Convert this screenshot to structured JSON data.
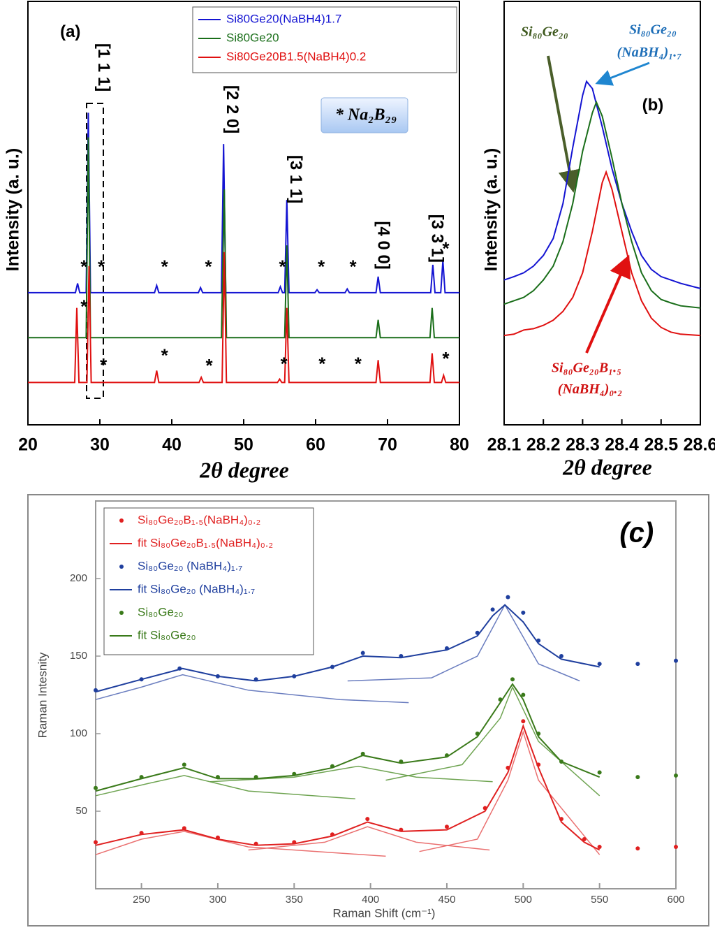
{
  "chart_data": [
    {
      "type": "line",
      "xlabel": "2θ degree",
      "ylabel": "Intensity (a. u.)",
      "xlim": [
        20,
        80
      ],
      "xticks": [
        20,
        30,
        40,
        50,
        60,
        70,
        80
      ],
      "ylim": [
        0,
        100
      ],
      "legend": "upper right",
      "series": [
        {
          "name": "Si80Ge20(NaBH4)1.7",
          "color": "#1414d2",
          "x": [
            20,
            26.6,
            26.9,
            27.2,
            28.1,
            28.4,
            28.7,
            37.6,
            37.9,
            38.2,
            43.7,
            44.0,
            44.3,
            46.9,
            47.2,
            47.5,
            54.8,
            55.1,
            55.4,
            55.7,
            56.0,
            56.3,
            59.9,
            60.2,
            60.5,
            64.1,
            64.4,
            64.7,
            68.4,
            68.7,
            69.0,
            76.0,
            76.3,
            76.6,
            77.4,
            77.7,
            78.0,
            80
          ],
          "values": [
            31.2,
            31.2,
            33.4,
            31.2,
            31.2,
            73.7,
            31.2,
            31.2,
            32.9,
            31.2,
            31.2,
            32.4,
            31.2,
            31.2,
            66.3,
            31.2,
            31.2,
            32.6,
            31.2,
            31.2,
            53.1,
            31.2,
            31.2,
            31.9,
            31.2,
            31.2,
            32.1,
            31.2,
            31.2,
            35,
            31.2,
            31.2,
            37.8,
            31.2,
            31.2,
            38.8,
            31.2,
            31.2
          ]
        },
        {
          "name": "Si80Ge20",
          "color": "#1a6e1a",
          "x": [
            20,
            28.1,
            28.4,
            28.7,
            46.9,
            47.3,
            47.6,
            55.7,
            56.0,
            56.3,
            68.4,
            68.7,
            69.0,
            75.9,
            76.2,
            76.5,
            80
          ],
          "values": [
            20.6,
            20.6,
            67.9,
            20.6,
            20.6,
            55.6,
            20.6,
            20.6,
            42.4,
            20.6,
            20.6,
            24.8,
            20.6,
            20.6,
            27.6,
            20.6,
            20.6
          ]
        },
        {
          "name": "Si80Ge20B1.5(NaBH4)0.2",
          "color": "#e01010",
          "x": [
            20,
            26.5,
            26.8,
            27.1,
            28.2,
            28.5,
            28.8,
            37.6,
            37.9,
            38.2,
            43.8,
            44.1,
            44.4,
            47.0,
            47.3,
            47.6,
            54.7,
            55.0,
            55.3,
            55.7,
            56.0,
            56.3,
            68.4,
            68.7,
            69.0,
            75.9,
            76.2,
            76.5,
            77.5,
            77.8,
            78.1,
            80
          ],
          "values": [
            10,
            10,
            27.6,
            10,
            10,
            37.5,
            10,
            10,
            12.8,
            10,
            10,
            11.2,
            10,
            10,
            40.8,
            10,
            10,
            10.8,
            10,
            10,
            27.6,
            10,
            10,
            15.3,
            10,
            10,
            16.9,
            10,
            10,
            11.7,
            10,
            10
          ]
        }
      ],
      "annotations": [
        {
          "text": "(a)",
          "x": 25.9,
          "y": 92.6
        },
        {
          "text": "[1 1 1]",
          "x": 30.4,
          "y": 84.4
        },
        {
          "text": "[2 2 0]",
          "x": 48.3,
          "y": 74.5
        },
        {
          "text": "[3 1 1]",
          "x": 57.1,
          "y": 58
        },
        {
          "text": "[4 0 0]",
          "x": 69.3,
          "y": 42.4
        },
        {
          "text": "[3 3 1]",
          "x": 76.8,
          "y": 44
        },
        {
          "text": "* Na₂B₂₉",
          "x": 67,
          "y": 72.9
        },
        {
          "text": "*",
          "x": 27.8,
          "y": 37
        },
        {
          "text": "*",
          "x": 30.2,
          "y": 37
        },
        {
          "text": "*",
          "x": 39,
          "y": 37
        },
        {
          "text": "*",
          "x": 45.1,
          "y": 37
        },
        {
          "text": "*",
          "x": 55.4,
          "y": 37
        },
        {
          "text": "*",
          "x": 60.8,
          "y": 37
        },
        {
          "text": "*",
          "x": 65.2,
          "y": 37
        },
        {
          "text": "*",
          "x": 78.1,
          "y": 41.3
        },
        {
          "text": "*",
          "x": 27.8,
          "y": 27.6
        },
        {
          "text": "*",
          "x": 30.5,
          "y": 13.8
        },
        {
          "text": "*",
          "x": 39,
          "y": 16.1
        },
        {
          "text": "*",
          "x": 45.2,
          "y": 13.7
        },
        {
          "text": "*",
          "x": 55.6,
          "y": 14.1
        },
        {
          "text": "*",
          "x": 60.9,
          "y": 14.1
        },
        {
          "text": "*",
          "x": 65.9,
          "y": 14.1
        },
        {
          "text": "*",
          "x": 78.1,
          "y": 15.3
        }
      ]
    },
    {
      "type": "line",
      "xlabel": "2θ degree",
      "ylabel": "Intensity (a. u.)",
      "xlim": [
        28.1,
        28.6
      ],
      "xticks": [
        28.1,
        28.2,
        28.3,
        28.4,
        28.5,
        28.6
      ],
      "ylim": [
        0,
        100
      ],
      "series": [
        {
          "color": "#1414d2",
          "x": [
            28.1,
            28.125,
            28.15,
            28.175,
            28.2,
            28.225,
            28.25,
            28.275,
            28.3,
            28.31,
            28.325,
            28.35,
            28.375,
            28.4,
            28.425,
            28.45,
            28.475,
            28.5,
            28.525,
            28.55,
            28.6
          ],
          "values": [
            34.2,
            35,
            35.9,
            37.5,
            40,
            44,
            52.3,
            65.5,
            77.8,
            81.1,
            79.4,
            70.4,
            60.5,
            52.3,
            45.7,
            40,
            36.7,
            35,
            34.2,
            33.4,
            32.2
          ]
        },
        {
          "color": "#1a6e1a",
          "x": [
            28.1,
            28.125,
            28.15,
            28.175,
            28.2,
            28.225,
            28.25,
            28.275,
            28.3,
            28.325,
            28.335,
            28.35,
            28.375,
            28.4,
            28.425,
            28.45,
            28.475,
            28.5,
            28.525,
            28.55,
            28.6
          ],
          "values": [
            28.5,
            29.3,
            30.1,
            31.7,
            34.2,
            37.5,
            43.3,
            52.3,
            64.6,
            73.7,
            76.2,
            72.9,
            63,
            52.3,
            43.3,
            35.9,
            31.7,
            29.6,
            28.8,
            28.1,
            27.6
          ]
        },
        {
          "color": "#e01010",
          "x": [
            28.1,
            28.125,
            28.15,
            28.175,
            28.2,
            28.225,
            28.25,
            28.275,
            28.3,
            28.325,
            28.35,
            28.36,
            28.375,
            28.4,
            28.425,
            28.45,
            28.475,
            28.5,
            28.525,
            28.55,
            28.6
          ],
          "values": [
            21.1,
            21.4,
            22.4,
            22.7,
            23.5,
            24.7,
            26.8,
            30.1,
            35.9,
            45.7,
            57.2,
            59.7,
            55.6,
            45.7,
            35.9,
            29.3,
            25.2,
            23,
            21.9,
            21.4,
            21.1
          ]
        }
      ],
      "annotations": [
        {
          "text": "(b)",
          "x": 28.479,
          "y": 75.3
        },
        {
          "text": "Si₈₀Ge₂₀",
          "x": 28.203,
          "y": 92.6,
          "color": "#3f5a1f"
        },
        {
          "text": "Si₈₀Ge₂₀",
          "x": 28.479,
          "y": 93.1,
          "color": "#1f6fb8"
        },
        {
          "text": "(NaBH₄)₁.₇",
          "x": 28.47,
          "y": 87.7,
          "color": "#1f6fb8"
        },
        {
          "text": "Si₈₀Ge₂₀B₁.₅",
          "x": 28.31,
          "y": 13.2,
          "color": "#d01010"
        },
        {
          "text": "(NaBH₄)₀.₂",
          "x": 28.319,
          "y": 8.2,
          "color": "#d01010"
        }
      ]
    },
    {
      "type": "line",
      "xlabel": "Raman Shift (cm⁻¹)",
      "ylabel": "Raman Intesnity",
      "xlim": [
        220,
        600
      ],
      "xticks": [
        250,
        300,
        350,
        400,
        450,
        500,
        550,
        600
      ],
      "ylim": [
        0,
        250
      ],
      "yticks": [
        50,
        100,
        150,
        200
      ],
      "legend": "upper left",
      "series": [
        {
          "name": "Si₈₀Ge₂₀B₁.₅(NaBH₄)₀.₂",
          "mode": "markers",
          "color": "#e02020",
          "x": [
            220,
            250,
            278,
            300,
            325,
            350,
            375,
            398,
            420,
            450,
            475,
            490,
            500,
            510,
            525,
            540,
            550,
            575,
            600
          ],
          "values": [
            30,
            36,
            39,
            33,
            29,
            30,
            35,
            45,
            38,
            40,
            52,
            78,
            108,
            80,
            45,
            32,
            27,
            26,
            27
          ]
        },
        {
          "name": "fit Si₈₀Ge₂₀B₁.₅(NaBH₄)₀.₂",
          "mode": "line",
          "color": "#e02020",
          "x": [
            220,
            250,
            278,
            300,
            325,
            350,
            375,
            398,
            420,
            450,
            475,
            490,
            500,
            510,
            525,
            540,
            550
          ],
          "values": [
            28,
            35,
            38,
            32,
            28,
            29,
            34,
            43,
            37,
            38,
            50,
            75,
            105,
            78,
            43,
            30,
            25
          ]
        },
        {
          "name": "Si₈₀Ge₂₀ (NaBH₄)₁.₇",
          "mode": "markers",
          "color": "#1f3f9e",
          "x": [
            220,
            250,
            275,
            300,
            325,
            350,
            375,
            395,
            420,
            450,
            470,
            480,
            490,
            500,
            510,
            525,
            550,
            575,
            600
          ],
          "values": [
            128,
            135,
            142,
            137,
            135,
            137,
            143,
            152,
            150,
            155,
            165,
            180,
            188,
            178,
            160,
            150,
            145,
            145,
            147
          ]
        },
        {
          "name": "fit Si₈₀Ge₂₀ (NaBH₄)₁.₇",
          "mode": "line",
          "color": "#1f3f9e",
          "x": [
            220,
            250,
            277,
            300,
            325,
            350,
            375,
            395,
            420,
            450,
            470,
            480,
            488,
            500,
            510,
            525,
            550
          ],
          "values": [
            127,
            135,
            142,
            137,
            134,
            137,
            143,
            150,
            149,
            154,
            163,
            176,
            183,
            172,
            158,
            148,
            143
          ]
        },
        {
          "name": "Si₈₀Ge₂₀",
          "mode": "markers",
          "color": "#3a7a1a",
          "x": [
            220,
            250,
            278,
            300,
            325,
            350,
            375,
            395,
            420,
            450,
            470,
            485,
            493,
            500,
            510,
            525,
            550,
            575,
            600
          ],
          "values": [
            65,
            72,
            80,
            72,
            72,
            74,
            79,
            87,
            82,
            86,
            100,
            122,
            135,
            125,
            100,
            82,
            75,
            72,
            73
          ]
        },
        {
          "name": "fit Si₈₀Ge₂₀",
          "mode": "line",
          "color": "#3a7a1a",
          "x": [
            220,
            250,
            278,
            300,
            325,
            350,
            375,
            395,
            420,
            450,
            470,
            485,
            493,
            500,
            510,
            525,
            550
          ],
          "values": [
            63,
            71,
            78,
            71,
            71,
            73,
            78,
            86,
            81,
            85,
            98,
            120,
            132,
            122,
            98,
            82,
            72
          ]
        }
      ],
      "components": [
        {
          "color": "#5a6fb8",
          "x": [
            220,
            250,
            277,
            320,
            380,
            425
          ],
          "values": [
            122,
            130,
            138,
            128,
            122,
            120
          ]
        },
        {
          "color": "#5a6fb8",
          "x": [
            385,
            440,
            470,
            488,
            510,
            537
          ],
          "values": [
            134,
            136,
            150,
            183,
            145,
            134
          ]
        },
        {
          "color": "#5f9a3f",
          "x": [
            220,
            255,
            278,
            320,
            390
          ],
          "values": [
            60,
            68,
            73,
            63,
            58
          ]
        },
        {
          "color": "#5f9a3f",
          "x": [
            295,
            350,
            392,
            430,
            480
          ],
          "values": [
            69,
            72,
            79,
            72,
            69
          ]
        },
        {
          "color": "#5f9a3f",
          "x": [
            410,
            460,
            485,
            493,
            510,
            550
          ],
          "values": [
            70,
            80,
            110,
            130,
            95,
            60
          ]
        },
        {
          "color": "#e86060",
          "x": [
            220,
            250,
            278,
            320,
            410
          ],
          "values": [
            22,
            32,
            37,
            27,
            21
          ]
        },
        {
          "color": "#e86060",
          "x": [
            320,
            370,
            398,
            430,
            478
          ],
          "values": [
            25,
            30,
            40,
            30,
            25
          ]
        },
        {
          "color": "#e86060",
          "x": [
            432,
            470,
            490,
            500,
            510,
            550
          ],
          "values": [
            24,
            32,
            70,
            101,
            70,
            22
          ]
        }
      ],
      "annotations": [
        {
          "text": "(c)",
          "x": 574.3,
          "y": 228.4
        }
      ]
    }
  ]
}
